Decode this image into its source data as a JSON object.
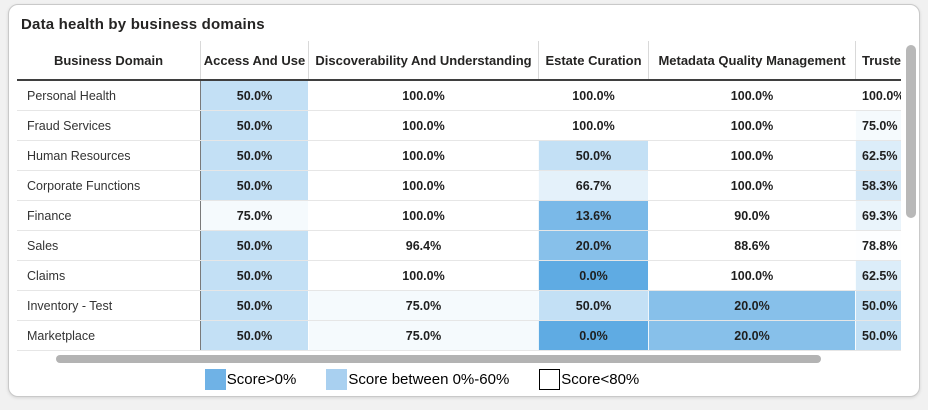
{
  "title": "Data health by business domains",
  "chart_data": {
    "type": "heatmap",
    "title": "Data health by business domains",
    "columns": [
      "Business Domain",
      "Access And Use",
      "Discoverability And Understanding",
      "Estate Curation",
      "Metadata Quality Management",
      "Trusted"
    ],
    "rows": [
      "Personal Health",
      "Fraud Services",
      "Human Resources",
      "Corporate Functions",
      "Finance",
      "Sales",
      "Claims",
      "Inventory - Test",
      "Marketplace"
    ],
    "values": [
      [
        50.0,
        100.0,
        100.0,
        100.0,
        100.0
      ],
      [
        50.0,
        100.0,
        100.0,
        100.0,
        75.0
      ],
      [
        50.0,
        100.0,
        50.0,
        100.0,
        62.5
      ],
      [
        50.0,
        100.0,
        66.7,
        100.0,
        58.3
      ],
      [
        75.0,
        100.0,
        13.6,
        90.0,
        69.3
      ],
      [
        50.0,
        96.4,
        20.0,
        88.6,
        78.8
      ],
      [
        50.0,
        100.0,
        0.0,
        100.0,
        62.5
      ],
      [
        50.0,
        75.0,
        50.0,
        20.0,
        50.0
      ],
      [
        50.0,
        75.0,
        0.0,
        20.0,
        50.0
      ]
    ],
    "value_format": "{value}%",
    "color_scale": {
      "min_color": "#5FABE3",
      "max_color": "#FFFFFF",
      "white_at": 80
    },
    "legend_position": "bottom",
    "legend": [
      {
        "label": "Score>0%",
        "color": "#6FB2E6",
        "border": "#6FB2E6"
      },
      {
        "label": "Score between 0%-60%",
        "color": "#A9D0F0",
        "border": "#A9D0F0"
      },
      {
        "label": "Score<80%",
        "color": "#FFFFFF",
        "border": "#000000"
      }
    ]
  }
}
